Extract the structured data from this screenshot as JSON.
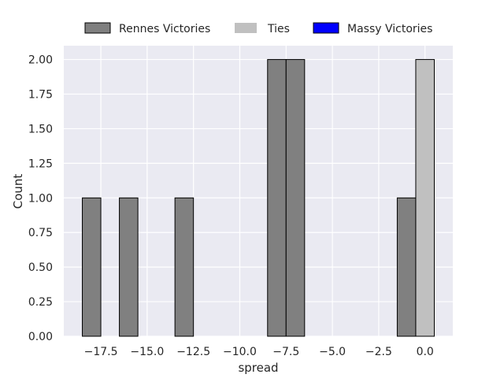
{
  "chart_data": {
    "type": "bar",
    "xlabel": "spread",
    "ylabel": "Count",
    "xlim": [
      -19.5,
      1.5
    ],
    "ylim": [
      0,
      2.1
    ],
    "grid": true,
    "legend_position": "top-center",
    "x_ticks": [
      -17.5,
      -15.0,
      -12.5,
      -10.0,
      -7.5,
      -5.0,
      -2.5,
      0.0
    ],
    "x_tick_labels": [
      "−17.5",
      "−15.0",
      "−12.5",
      "−10.0",
      "−7.5",
      "−5.0",
      "−2.5",
      "0.0"
    ],
    "y_ticks": [
      0,
      0.25,
      0.5,
      0.75,
      1.0,
      1.25,
      1.5,
      1.75,
      2.0
    ],
    "y_tick_labels": [
      "0.00",
      "0.25",
      "0.50",
      "0.75",
      "1.00",
      "1.25",
      "1.50",
      "1.75",
      "2.00"
    ],
    "series": [
      {
        "name": "Rennes Victories",
        "color": "#808080",
        "bins": [
          {
            "x0": -18.5,
            "x1": -17.5,
            "count": 1
          },
          {
            "x0": -16.5,
            "x1": -15.5,
            "count": 1
          },
          {
            "x0": -13.5,
            "x1": -12.5,
            "count": 1
          },
          {
            "x0": -8.5,
            "x1": -7.5,
            "count": 2
          },
          {
            "x0": -7.5,
            "x1": -6.5,
            "count": 2
          },
          {
            "x0": -1.5,
            "x1": -0.5,
            "count": 1
          }
        ]
      },
      {
        "name": "Ties",
        "color": "#c0c0c0",
        "bins": [
          {
            "x0": -0.5,
            "x1": 0.5,
            "count": 2
          }
        ]
      },
      {
        "name": "Massy Victories",
        "color": "#0000ff",
        "bins": []
      }
    ]
  }
}
